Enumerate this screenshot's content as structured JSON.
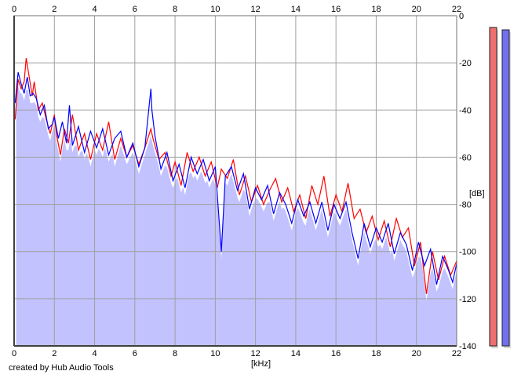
{
  "credit_text": "created by Hub Audio Tools",
  "chart_data": {
    "type": "line",
    "x_unit_label": "[kHz]",
    "y_unit_label": "[dB]",
    "xlim": [
      0,
      22
    ],
    "ylim": [
      -140,
      0
    ],
    "x_ticks": [
      0,
      2,
      4,
      6,
      8,
      10,
      12,
      14,
      16,
      18,
      20,
      22
    ],
    "y_ticks": [
      0,
      -20,
      -40,
      -60,
      -80,
      -100,
      -120,
      -140
    ],
    "grid": true,
    "background_fill_color": "#c2c2ff",
    "series": [
      {
        "color": "#ff0000",
        "points": [
          [
            0.05,
            -44
          ],
          [
            0.2,
            -27
          ],
          [
            0.35,
            -31
          ],
          [
            0.5,
            -28
          ],
          [
            0.6,
            -18
          ],
          [
            0.75,
            -26
          ],
          [
            0.9,
            -34
          ],
          [
            1.0,
            -28
          ],
          [
            1.2,
            -40
          ],
          [
            1.4,
            -37
          ],
          [
            1.6,
            -44
          ],
          [
            1.8,
            -50
          ],
          [
            2.0,
            -42
          ],
          [
            2.1,
            -50
          ],
          [
            2.3,
            -59
          ],
          [
            2.5,
            -48
          ],
          [
            2.7,
            -54
          ],
          [
            2.9,
            -42
          ],
          [
            3.2,
            -57
          ],
          [
            3.5,
            -50
          ],
          [
            3.8,
            -61
          ],
          [
            4.1,
            -50
          ],
          [
            4.4,
            -57
          ],
          [
            4.7,
            -45
          ],
          [
            5.0,
            -61
          ],
          [
            5.3,
            -52
          ],
          [
            5.6,
            -60
          ],
          [
            5.9,
            -55
          ],
          [
            6.2,
            -63
          ],
          [
            6.5,
            -56
          ],
          [
            6.8,
            -48
          ],
          [
            6.9,
            -52
          ],
          [
            7.2,
            -61
          ],
          [
            7.5,
            -58
          ],
          [
            7.8,
            -68
          ],
          [
            8.0,
            -62
          ],
          [
            8.3,
            -72
          ],
          [
            8.6,
            -58
          ],
          [
            8.9,
            -66
          ],
          [
            9.2,
            -60
          ],
          [
            9.5,
            -68
          ],
          [
            9.8,
            -62
          ],
          [
            10.1,
            -73
          ],
          [
            10.3,
            -65
          ],
          [
            10.6,
            -69
          ],
          [
            10.9,
            -61
          ],
          [
            11.2,
            -76
          ],
          [
            11.5,
            -68
          ],
          [
            11.8,
            -79
          ],
          [
            12.1,
            -72
          ],
          [
            12.4,
            -80
          ],
          [
            12.7,
            -74
          ],
          [
            13.0,
            -69
          ],
          [
            13.3,
            -79
          ],
          [
            13.6,
            -73
          ],
          [
            13.9,
            -83
          ],
          [
            14.2,
            -76
          ],
          [
            14.5,
            -86
          ],
          [
            14.8,
            -72
          ],
          [
            15.1,
            -80
          ],
          [
            15.4,
            -68
          ],
          [
            15.7,
            -85
          ],
          [
            16.0,
            -76
          ],
          [
            16.3,
            -83
          ],
          [
            16.6,
            -71
          ],
          [
            16.9,
            -86
          ],
          [
            17.2,
            -82
          ],
          [
            17.5,
            -92
          ],
          [
            17.8,
            -85
          ],
          [
            18.1,
            -95
          ],
          [
            18.4,
            -87
          ],
          [
            18.7,
            -98
          ],
          [
            19.0,
            -86
          ],
          [
            19.3,
            -94
          ],
          [
            19.6,
            -90
          ],
          [
            19.9,
            -106
          ],
          [
            20.2,
            -96
          ],
          [
            20.5,
            -118
          ],
          [
            20.8,
            -100
          ],
          [
            21.1,
            -112
          ],
          [
            21.4,
            -102
          ],
          [
            21.7,
            -110
          ],
          [
            22.0,
            -104
          ]
        ]
      },
      {
        "color": "#0000ff",
        "points": [
          [
            0.05,
            -37
          ],
          [
            0.2,
            -24
          ],
          [
            0.35,
            -29
          ],
          [
            0.5,
            -33
          ],
          [
            0.65,
            -26
          ],
          [
            0.8,
            -34
          ],
          [
            0.95,
            -33
          ],
          [
            1.1,
            -35
          ],
          [
            1.3,
            -42
          ],
          [
            1.5,
            -38
          ],
          [
            1.7,
            -48
          ],
          [
            1.9,
            -46
          ],
          [
            2.0,
            -43
          ],
          [
            2.2,
            -52
          ],
          [
            2.4,
            -45
          ],
          [
            2.6,
            -54
          ],
          [
            2.75,
            -38
          ],
          [
            2.9,
            -55
          ],
          [
            3.2,
            -47
          ],
          [
            3.5,
            -58
          ],
          [
            3.8,
            -49
          ],
          [
            4.1,
            -56
          ],
          [
            4.4,
            -48
          ],
          [
            4.7,
            -59
          ],
          [
            5.0,
            -52
          ],
          [
            5.3,
            -49
          ],
          [
            5.6,
            -60
          ],
          [
            5.9,
            -54
          ],
          [
            6.2,
            -64
          ],
          [
            6.5,
            -56
          ],
          [
            6.8,
            -31
          ],
          [
            6.85,
            -40
          ],
          [
            7.0,
            -51
          ],
          [
            7.3,
            -65
          ],
          [
            7.6,
            -58
          ],
          [
            7.9,
            -70
          ],
          [
            8.2,
            -63
          ],
          [
            8.5,
            -73
          ],
          [
            8.8,
            -60
          ],
          [
            9.1,
            -67
          ],
          [
            9.4,
            -61
          ],
          [
            9.7,
            -70
          ],
          [
            10.0,
            -64
          ],
          [
            10.2,
            -88
          ],
          [
            10.3,
            -100
          ],
          [
            10.5,
            -68
          ],
          [
            10.8,
            -64
          ],
          [
            11.1,
            -74
          ],
          [
            11.4,
            -67
          ],
          [
            11.7,
            -82
          ],
          [
            12.0,
            -73
          ],
          [
            12.3,
            -78
          ],
          [
            12.6,
            -72
          ],
          [
            12.9,
            -84
          ],
          [
            13.2,
            -75
          ],
          [
            13.5,
            -80
          ],
          [
            13.8,
            -88
          ],
          [
            14.1,
            -78
          ],
          [
            14.4,
            -85
          ],
          [
            14.7,
            -79
          ],
          [
            15.0,
            -88
          ],
          [
            15.3,
            -79
          ],
          [
            15.6,
            -91
          ],
          [
            15.9,
            -80
          ],
          [
            16.2,
            -86
          ],
          [
            16.5,
            -79
          ],
          [
            16.8,
            -92
          ],
          [
            17.1,
            -103
          ],
          [
            17.4,
            -88
          ],
          [
            17.7,
            -98
          ],
          [
            18.0,
            -90
          ],
          [
            18.3,
            -96
          ],
          [
            18.6,
            -88
          ],
          [
            18.9,
            -101
          ],
          [
            19.2,
            -92
          ],
          [
            19.5,
            -97
          ],
          [
            19.8,
            -108
          ],
          [
            20.1,
            -96
          ],
          [
            20.4,
            -106
          ],
          [
            20.7,
            -99
          ],
          [
            21.0,
            -114
          ],
          [
            21.3,
            -102
          ],
          [
            21.6,
            -108
          ],
          [
            21.8,
            -113
          ],
          [
            22.0,
            -105
          ]
        ]
      }
    ]
  },
  "meters": [
    {
      "channel_color": "#f07070",
      "level_db": -5
    },
    {
      "channel_color": "#7070f0",
      "level_db": -6
    }
  ]
}
